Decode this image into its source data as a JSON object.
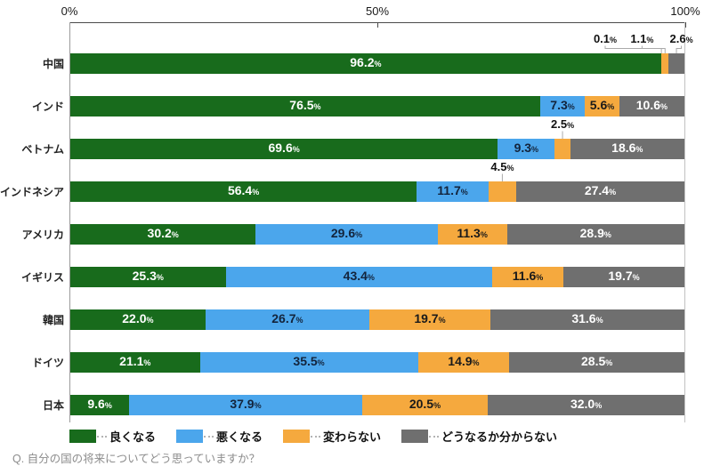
{
  "question": "Q. 自分の国の将来についてどう思っていますか？",
  "axis": {
    "tick_labels": [
      "0%",
      "50%",
      "100%"
    ],
    "tick_percents": [
      0,
      50,
      100
    ]
  },
  "legend": {
    "items": [
      {
        "label": "良くなる",
        "color": "#186b1c"
      },
      {
        "label": "悪くなる",
        "color": "#4ba6ec"
      },
      {
        "label": "変わらない",
        "color": "#f5a93e"
      },
      {
        "label": "どうなるか分からない",
        "color": "#6f6f6f"
      }
    ]
  },
  "chart_data": {
    "type": "bar",
    "orientation": "horizontal",
    "stacked": true,
    "unit": "%",
    "xlim": [
      0,
      100
    ],
    "grid": false,
    "legend_position": "bottom",
    "categories": [
      "中国",
      "インド",
      "ベトナム",
      "インドネシア",
      "アメリカ",
      "イギリス",
      "韓国",
      "ドイツ",
      "日本"
    ],
    "series": [
      {
        "name": "良くなる",
        "color": "#186b1c",
        "label_color": "#ffffff",
        "values": [
          96.2,
          76.5,
          69.6,
          56.4,
          30.2,
          25.3,
          22.0,
          21.1,
          9.6
        ]
      },
      {
        "name": "悪くなる",
        "color": "#4ba6ec",
        "label_color": "#13243c",
        "values": [
          0.1,
          7.3,
          9.3,
          11.7,
          29.6,
          43.4,
          26.7,
          35.5,
          37.9
        ]
      },
      {
        "name": "変わらない",
        "color": "#f5a93e",
        "label_color": "#1a1a1a",
        "values": [
          1.1,
          5.6,
          2.5,
          4.5,
          11.3,
          11.6,
          19.7,
          14.9,
          20.5
        ]
      },
      {
        "name": "どうなるか分からない",
        "color": "#6f6f6f",
        "label_color": "#ffffff",
        "values": [
          2.6,
          10.6,
          18.6,
          27.4,
          28.9,
          19.7,
          31.6,
          28.5,
          32.0
        ]
      }
    ],
    "callouts": [
      {
        "row": 0,
        "series": 1,
        "label_x_pct": 87.1
      },
      {
        "row": 0,
        "series": 2,
        "label_x_pct": 93.1
      },
      {
        "row": 0,
        "series": 3,
        "label_x_pct": 99.5
      },
      {
        "row": 2,
        "series": 2,
        "label_x_pct": null
      },
      {
        "row": 3,
        "series": 2,
        "label_x_pct": null
      }
    ]
  }
}
